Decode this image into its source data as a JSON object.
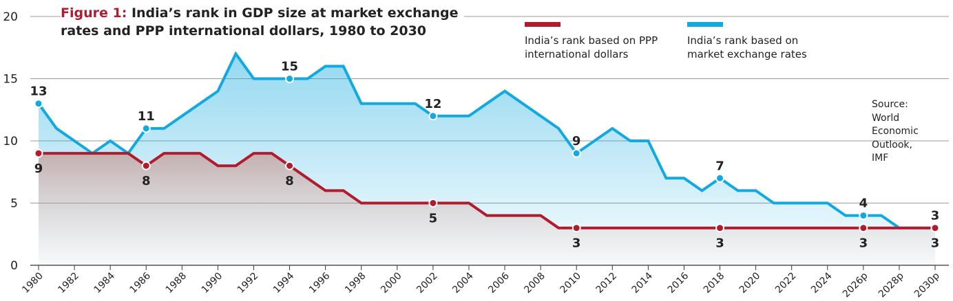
{
  "title": {
    "figure_label": "Figure 1:",
    "line1": "India’s rank in GDP size at market exchange",
    "line2": "rates and PPP international dollars, 1980 to 2030"
  },
  "legend": {
    "ppp": {
      "label_line1": "India’s rank based on PPP",
      "label_line2": "international dollars",
      "color": "#b01c2e"
    },
    "mer": {
      "label_line1": "India’s rank based on",
      "label_line2": "market exchange rates",
      "color": "#12a9e0"
    }
  },
  "source": {
    "lines": [
      "Source:",
      "World",
      "Economic",
      "Outlook,",
      "IMF"
    ]
  },
  "chart_data": {
    "type": "area",
    "title": "India’s rank in GDP size at market exchange rates and PPP international dollars, 1980 to 2030",
    "ylim": [
      0,
      20
    ],
    "yticks": [
      0,
      5,
      10,
      15,
      20
    ],
    "xlim": [
      1980,
      2030
    ],
    "xticks": [
      "1980",
      "1982",
      "1984",
      "1986",
      "1988",
      "1990",
      "1992",
      "1994",
      "1996",
      "1998",
      "2000",
      "2002",
      "2004",
      "2006",
      "2008",
      "2010",
      "2012",
      "2014",
      "2016",
      "2018",
      "2020",
      "2022",
      "2024",
      "2026p",
      "2028p",
      "2030p"
    ],
    "grid": true,
    "legend_position": "top-right",
    "series": [
      {
        "name": "India’s rank based on market exchange rates",
        "key": "mer",
        "color": "#12a9e0",
        "x": [
          1980,
          1981,
          1982,
          1983,
          1984,
          1985,
          1986,
          1987,
          1988,
          1989,
          1990,
          1991,
          1992,
          1993,
          1994,
          1995,
          1996,
          1997,
          1998,
          1999,
          2000,
          2001,
          2002,
          2003,
          2004,
          2005,
          2006,
          2007,
          2008,
          2009,
          2010,
          2011,
          2012,
          2013,
          2014,
          2015,
          2016,
          2017,
          2018,
          2019,
          2020,
          2021,
          2022,
          2023,
          2024,
          2025,
          2026,
          2027,
          2028,
          2029,
          2030
        ],
        "y": [
          13,
          11,
          10,
          9,
          10,
          9,
          11,
          11,
          12,
          13,
          14,
          17,
          15,
          15,
          15,
          15,
          16,
          16,
          13,
          13,
          13,
          13,
          12,
          12,
          12,
          13,
          14,
          13,
          12,
          11,
          9,
          10,
          11,
          10,
          10,
          7,
          7,
          6,
          7,
          6,
          6,
          5,
          5,
          5,
          5,
          4,
          4,
          4,
          3,
          3,
          3
        ],
        "labels": [
          {
            "x": 1980,
            "text": "13"
          },
          {
            "x": 1986,
            "text": "11"
          },
          {
            "x": 1994,
            "text": "15"
          },
          {
            "x": 2002,
            "text": "12"
          },
          {
            "x": 2010,
            "text": "9"
          },
          {
            "x": 2018,
            "text": "7"
          },
          {
            "x": 2026,
            "text": "4"
          },
          {
            "x": 2030,
            "text": "3"
          }
        ]
      },
      {
        "name": "India’s rank based on PPP international dollars",
        "key": "ppp",
        "color": "#b01c2e",
        "x": [
          1980,
          1981,
          1982,
          1983,
          1984,
          1985,
          1986,
          1987,
          1988,
          1989,
          1990,
          1991,
          1992,
          1993,
          1994,
          1995,
          1996,
          1997,
          1998,
          1999,
          2000,
          2001,
          2002,
          2003,
          2004,
          2005,
          2006,
          2007,
          2008,
          2009,
          2010,
          2011,
          2012,
          2013,
          2014,
          2015,
          2016,
          2017,
          2018,
          2019,
          2020,
          2021,
          2022,
          2023,
          2024,
          2025,
          2026,
          2027,
          2028,
          2029,
          2030
        ],
        "y": [
          9,
          9,
          9,
          9,
          9,
          9,
          8,
          9,
          9,
          9,
          8,
          8,
          9,
          9,
          8,
          7,
          6,
          6,
          5,
          5,
          5,
          5,
          5,
          5,
          5,
          4,
          4,
          4,
          4,
          3,
          3,
          3,
          3,
          3,
          3,
          3,
          3,
          3,
          3,
          3,
          3,
          3,
          3,
          3,
          3,
          3,
          3,
          3,
          3,
          3,
          3
        ],
        "labels": [
          {
            "x": 1980,
            "text": "9"
          },
          {
            "x": 1986,
            "text": "8"
          },
          {
            "x": 1994,
            "text": "8"
          },
          {
            "x": 2002,
            "text": "5"
          },
          {
            "x": 2010,
            "text": "3"
          },
          {
            "x": 2018,
            "text": "3"
          },
          {
            "x": 2026,
            "text": "3"
          },
          {
            "x": 2030,
            "text": "3"
          }
        ]
      }
    ]
  }
}
